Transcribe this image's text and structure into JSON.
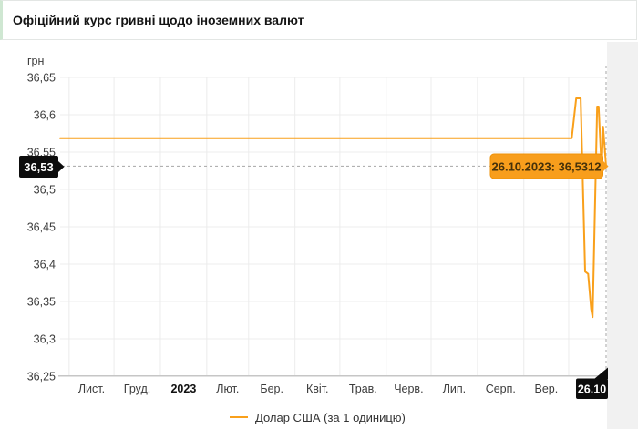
{
  "header": {
    "title": "Офіційний курс гривні щодо іноземних валют"
  },
  "legend": {
    "series_label": "Долар США (за 1 одиницю)"
  },
  "colors": {
    "line": "#F9A01B",
    "tooltip_bg": "#F89E1C",
    "tooltip_border": "#EE9108",
    "tooltip_text": "#45310A",
    "marker_bg": "#0D0D0D",
    "marker_text": "#FFFFFF",
    "grid": "#ECECEC",
    "axis_line": "#C6C6C6",
    "dashed_guide": "#A6A6A6",
    "tick_text": "#3C3C3C",
    "header_accent": "#CFE7D2",
    "side_strip": "#F1F1F1"
  },
  "chart_data": {
    "type": "line",
    "title": "Офіційний курс гривні щодо іноземних валют",
    "ylabel": "грн",
    "x_range": [
      "26.10.2022",
      "26.10.2023"
    ],
    "ylim": [
      36.25,
      36.65
    ],
    "grid": true,
    "legend_position": "bottom",
    "y_ticks": [
      36.65,
      36.6,
      36.55,
      36.5,
      36.45,
      36.4,
      36.35,
      36.3,
      36.25
    ],
    "y_tick_labels": [
      "36,65",
      "36,6",
      "36,55",
      "36,5",
      "36,45",
      "36,4",
      "36,35",
      "36,3",
      "36,25"
    ],
    "months": [
      {
        "label": "Лист.",
        "start_day": 6,
        "mid_day": 21,
        "bold": false
      },
      {
        "label": "Груд.",
        "start_day": 36,
        "mid_day": 51.5,
        "bold": false
      },
      {
        "label": "2023",
        "start_day": 67,
        "mid_day": 82.5,
        "bold": true
      },
      {
        "label": "Лют.",
        "start_day": 98,
        "mid_day": 112,
        "bold": false
      },
      {
        "label": "Бер.",
        "start_day": 126,
        "mid_day": 141.5,
        "bold": false
      },
      {
        "label": "Квіт.",
        "start_day": 157,
        "mid_day": 172,
        "bold": false
      },
      {
        "label": "Трав.",
        "start_day": 187,
        "mid_day": 202.5,
        "bold": false
      },
      {
        "label": "Черв.",
        "start_day": 218,
        "mid_day": 233,
        "bold": false
      },
      {
        "label": "Лип.",
        "start_day": 248,
        "mid_day": 263.5,
        "bold": false
      },
      {
        "label": "Серп.",
        "start_day": 279,
        "mid_day": 294.5,
        "bold": false
      },
      {
        "label": "Вер.",
        "start_day": 310,
        "mid_day": 325,
        "bold": false
      },
      {
        "label": "",
        "start_day": 340,
        "mid_day": 352.5,
        "bold": false
      }
    ],
    "series": [
      {
        "name": "Долар США (за 1 одиницю)",
        "points": [
          [
            "26.10.2022",
            36.5686
          ],
          [
            "03.10.2023",
            36.5686
          ],
          [
            "06.10.2023",
            36.622
          ],
          [
            "09.10.2023",
            36.622
          ],
          [
            "12.10.2023",
            36.39
          ],
          [
            "14.10.2023",
            36.387
          ],
          [
            "16.10.2023",
            36.34
          ],
          [
            "17.10.2023",
            36.329
          ],
          [
            "20.10.2023",
            36.611
          ],
          [
            "21.10.2023",
            36.611
          ],
          [
            "23.10.2023",
            36.525
          ],
          [
            "24.10.2023",
            36.584
          ],
          [
            "26.10.2023",
            36.5312
          ]
        ]
      }
    ],
    "annotations": {
      "tooltip_text": "26.10.2023: 36,5312",
      "current_value_label": "36,53",
      "current_date_label": "26.10",
      "current": {
        "date": "26.10.2023",
        "value": 36.5312
      }
    }
  }
}
